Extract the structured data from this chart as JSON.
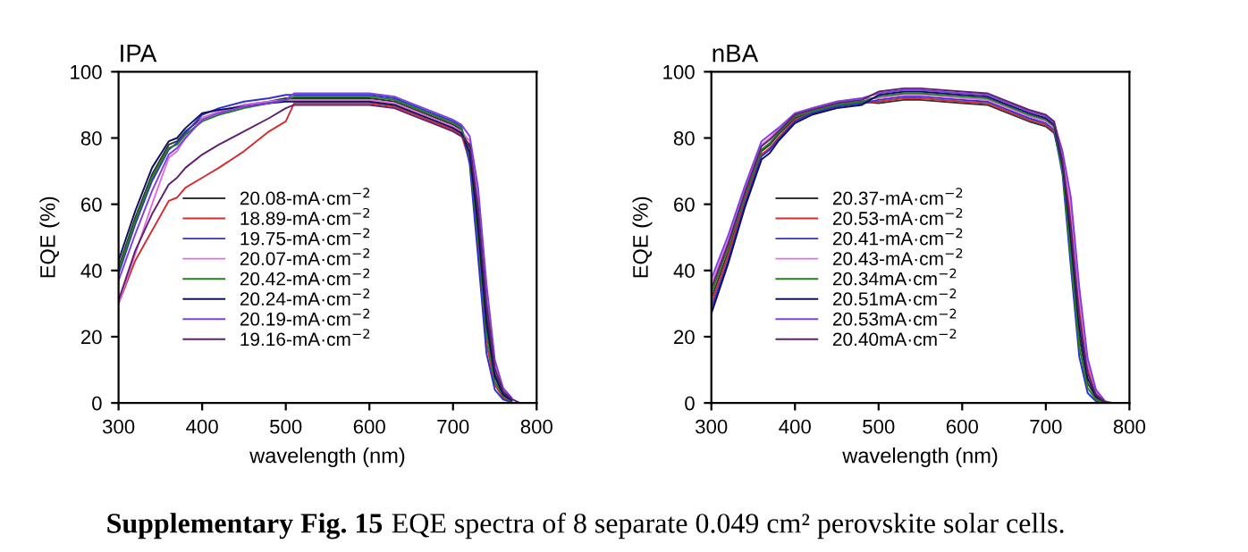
{
  "chart_data": [
    {
      "type": "line",
      "title": "IPA",
      "xlabel": "wavelength (nm)",
      "ylabel": "EQE (%)",
      "xlim": [
        300,
        800
      ],
      "ylim": [
        0,
        100
      ],
      "xticks": [
        300,
        400,
        500,
        600,
        700,
        800
      ],
      "yticks": [
        0,
        20,
        40,
        60,
        80,
        100
      ],
      "grid": false,
      "legend": "center",
      "marker": "none",
      "line_style": "solid",
      "x": [
        300,
        320,
        340,
        360,
        370,
        380,
        400,
        420,
        450,
        480,
        500,
        510,
        530,
        550,
        600,
        630,
        650,
        680,
        700,
        710,
        720,
        730,
        740,
        750,
        760,
        770,
        780,
        800
      ],
      "series": [
        {
          "name": "20.08-mA·cm$^{−2}$",
          "color": "#333333",
          "values": [
            41,
            56,
            69,
            78,
            79,
            82,
            86,
            88,
            90,
            91,
            92,
            92,
            92,
            92,
            92,
            91,
            89,
            86,
            84,
            82.5,
            77,
            56,
            27,
            9,
            3,
            1,
            null,
            null
          ]
        },
        {
          "name": "18.89-mA·cm$^{−2}$",
          "color": "#d03030",
          "values": [
            30,
            43,
            52,
            61,
            62,
            65,
            68,
            71,
            76,
            82,
            85,
            90.5,
            90.5,
            90.5,
            90.5,
            89.5,
            87.5,
            84.5,
            82.5,
            81,
            73,
            47,
            18,
            5.5,
            1.5,
            0.4,
            null,
            null
          ]
        },
        {
          "name": "19.75-mA·cm$^{−2}$",
          "color": "#3030d0",
          "values": [
            39,
            54,
            67,
            76.5,
            78.5,
            81.5,
            87,
            89,
            91,
            92,
            93,
            93,
            93,
            93,
            93,
            92,
            90,
            87,
            85,
            83.5,
            72,
            44,
            15,
            4,
            1,
            0.2,
            null,
            null
          ]
        },
        {
          "name": "20.07-mA·cm$^{−2}$",
          "color": "#e070e0",
          "values": [
            30,
            45,
            60,
            74,
            76,
            80,
            86,
            88,
            90,
            91,
            91.5,
            91.5,
            91.5,
            91.5,
            91.5,
            90.5,
            88.5,
            85.5,
            83.5,
            82,
            79,
            62,
            33,
            12,
            4,
            1.4,
            null,
            null
          ]
        },
        {
          "name": "20.42-mA·cm$^{−2}$",
          "color": "#208020",
          "values": [
            40,
            55,
            68,
            77,
            78,
            81,
            85,
            87,
            89,
            90.5,
            91.5,
            92.5,
            92.5,
            92.5,
            92.5,
            91.5,
            89.5,
            86.5,
            84.5,
            83,
            74.5,
            50,
            21,
            6.5,
            2,
            0.6,
            null,
            null
          ]
        },
        {
          "name": "20.24-mA·cm$^{−2}$",
          "color": "#101060",
          "values": [
            43,
            58,
            71,
            79,
            80,
            83,
            87.5,
            88.5,
            89.5,
            90.5,
            91,
            91,
            91,
            91,
            91,
            90,
            88,
            85,
            83,
            81.5,
            75.5,
            53,
            24,
            8,
            2.5,
            0.8,
            null,
            null
          ]
        },
        {
          "name": "20.19-mA·cm$^{−2}$",
          "color": "#8040e0",
          "values": [
            37,
            51,
            64,
            75,
            77,
            80,
            85.5,
            87.5,
            89.5,
            90.5,
            91.5,
            93.5,
            93.5,
            93.5,
            93.5,
            92.5,
            90.5,
            87.5,
            85.5,
            84,
            80.5,
            65,
            36,
            13,
            4.5,
            1.6,
            null,
            null
          ]
        },
        {
          "name": "19.16-mA·cm$^{−2}$",
          "color": "#602070",
          "values": [
            31,
            46,
            57,
            66,
            68,
            71,
            75,
            78,
            82,
            86,
            89,
            90,
            90,
            90,
            90,
            89,
            87,
            84,
            82,
            80.5,
            78,
            59,
            30,
            10.5,
            3.5,
            1.2,
            0,
            0
          ]
        }
      ],
      "annotations": [
        "Supplementary Fig. 15",
        "EQE spectra of 8 separate 0.049 cm² perovskite solar cells."
      ]
    },
    {
      "type": "line",
      "title": "nBA",
      "xlabel": "wavelength (nm)",
      "ylabel": "EQE (%)",
      "xlim": [
        300,
        800
      ],
      "ylim": [
        0,
        100
      ],
      "xticks": [
        300,
        400,
        500,
        600,
        700,
        800
      ],
      "yticks": [
        0,
        20,
        40,
        60,
        80,
        100
      ],
      "grid": false,
      "legend": "center",
      "marker": "none",
      "line_style": "solid",
      "x": [
        300,
        320,
        340,
        360,
        370,
        380,
        400,
        420,
        450,
        480,
        500,
        530,
        550,
        600,
        630,
        650,
        680,
        700,
        710,
        720,
        730,
        740,
        750,
        760,
        770,
        780,
        800
      ],
      "series": [
        {
          "name": "20.37-mA·cm$^{−2}$",
          "color": "#333333",
          "values": [
            31.5,
            45.5,
            61.5,
            76,
            78,
            81,
            86,
            88,
            90,
            91,
            90.5,
            91.5,
            91.5,
            90.5,
            90,
            88,
            85,
            83.5,
            81.5,
            71,
            47,
            20,
            6,
            1.5,
            0.3,
            null,
            null
          ]
        },
        {
          "name": "20.53-mA·cm$^{−2}$",
          "color": "#d03030",
          "values": [
            30,
            44.5,
            61,
            75,
            77,
            80,
            85.5,
            87.5,
            89.5,
            90.5,
            91,
            92,
            92,
            91,
            90.5,
            88.5,
            85.5,
            84,
            82,
            74,
            56,
            29,
            10.5,
            3,
            0.6,
            null,
            null
          ]
        },
        {
          "name": "20.41-mA·cm$^{−2}$",
          "color": "#3030d0",
          "values": [
            28.5,
            43,
            60,
            74.5,
            76.5,
            79.5,
            85,
            87.5,
            89.5,
            90.5,
            91.5,
            92.5,
            92.5,
            91.5,
            91,
            89,
            86,
            84.5,
            82.5,
            69,
            41,
            14,
            3,
            0.5,
            0.1,
            null,
            null
          ]
        },
        {
          "name": "20.43-mA·cm$^{−2}$",
          "color": "#e070e0",
          "values": [
            36,
            49,
            64.5,
            78,
            80,
            82.5,
            87,
            89,
            91,
            92,
            92,
            93,
            93,
            92,
            91.5,
            89.5,
            86.5,
            85,
            83,
            75,
            59,
            32,
            12,
            3.5,
            0.7,
            null,
            null
          ]
        },
        {
          "name": "20.34mA·cm$^{−2}$",
          "color": "#208020",
          "values": [
            33,
            47,
            62.5,
            76.5,
            78.5,
            81.5,
            86.5,
            88,
            90,
            91,
            92.5,
            93.5,
            93.5,
            92.5,
            92,
            90,
            87,
            85.5,
            83.5,
            70,
            44,
            17,
            4.5,
            1,
            0.2,
            null,
            null
          ]
        },
        {
          "name": "20.51mA·cm$^{−2}$",
          "color": "#101060",
          "values": [
            27,
            42,
            59,
            73.5,
            75.5,
            79,
            84.5,
            87,
            89,
            90,
            93,
            94,
            94,
            93,
            92.5,
            90.5,
            87.5,
            86,
            84,
            72,
            50,
            23,
            7.5,
            2,
            0.4,
            null,
            null
          ]
        },
        {
          "name": "20.53mA·cm$^{−2}$",
          "color": "#8040e0",
          "values": [
            37.5,
            50.5,
            65.5,
            79,
            81,
            83,
            87.5,
            89,
            91,
            92,
            93.5,
            94.5,
            94.5,
            93.5,
            93,
            91,
            88,
            86.5,
            84.5,
            76,
            62,
            35,
            13.5,
            4,
            0.8,
            null,
            null
          ]
        },
        {
          "name": "20.40mA·cm$^{−2}$",
          "color": "#602070",
          "values": [
            34.5,
            48,
            63.5,
            77.5,
            79.5,
            82,
            87,
            88.5,
            90.5,
            91.5,
            94,
            95,
            95,
            94,
            93.5,
            91.5,
            88.5,
            87,
            85,
            73,
            53,
            26,
            9,
            2.5,
            0.5,
            0,
            0
          ]
        }
      ]
    }
  ]
}
